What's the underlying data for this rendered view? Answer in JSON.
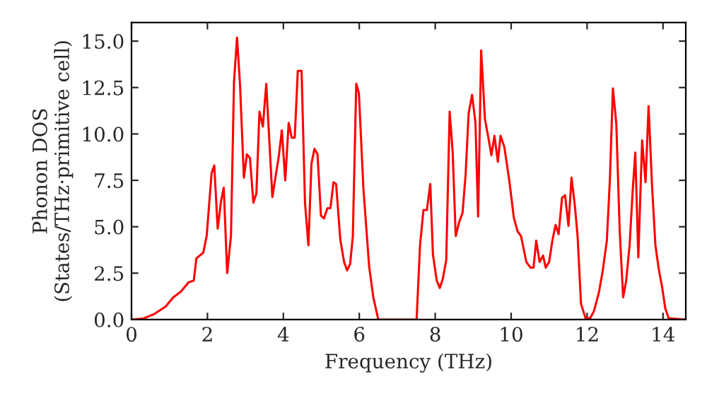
{
  "chart_data": {
    "type": "line",
    "xlabel": "Frequency (THz)",
    "ylabel": "Phonon DOS\n(States/THz·primitive cell)",
    "series": [
      {
        "color": "#ff0000",
        "x": [
          0,
          0.3,
          0.6,
          0.9,
          1.1,
          1.3,
          1.5,
          1.64,
          1.71,
          1.89,
          1.98,
          2.11,
          2.18,
          2.27,
          2.36,
          2.43,
          2.52,
          2.62,
          2.7,
          2.78,
          2.86,
          2.96,
          3.04,
          3.12,
          3.21,
          3.29,
          3.37,
          3.46,
          3.55,
          3.71,
          3.88,
          3.96,
          4.05,
          4.14,
          4.22,
          4.3,
          4.38,
          4.48,
          4.57,
          4.66,
          4.74,
          4.82,
          4.9,
          4.99,
          5.07,
          5.16,
          5.24,
          5.32,
          5.39,
          5.5,
          5.6,
          5.68,
          5.76,
          5.83,
          5.92,
          5.99,
          6.11,
          6.26,
          6.37,
          6.5,
          7.51,
          7.6,
          7.69,
          7.78,
          7.87,
          7.94,
          8.04,
          8.12,
          8.2,
          8.29,
          8.38,
          8.46,
          8.54,
          8.63,
          8.72,
          8.8,
          8.88,
          8.97,
          9.06,
          9.13,
          9.21,
          9.31,
          9.4,
          9.48,
          9.56,
          9.65,
          9.72,
          9.82,
          9.95,
          10.07,
          10.17,
          10.26,
          10.4,
          10.51,
          10.59,
          10.66,
          10.75,
          10.84,
          10.91,
          11.0,
          11.09,
          11.17,
          11.25,
          11.34,
          11.42,
          11.51,
          11.59,
          11.68,
          11.75,
          11.84,
          11.96,
          12.08,
          12.18,
          12.31,
          12.41,
          12.52,
          12.6,
          12.68,
          12.77,
          12.86,
          12.95,
          13.03,
          13.12,
          13.2,
          13.27,
          13.35,
          13.45,
          13.54,
          13.62,
          13.71,
          13.8,
          13.89,
          13.98,
          14.06,
          14.15,
          14.6
        ],
        "values": [
          0,
          0.05,
          0.3,
          0.7,
          1.2,
          1.5,
          2.0,
          2.1,
          3.3,
          3.6,
          4.5,
          7.9,
          8.3,
          4.9,
          6.4,
          7.1,
          2.5,
          4.5,
          12.8,
          15.2,
          12.6,
          7.65,
          8.9,
          8.7,
          6.3,
          6.8,
          11.2,
          10.4,
          12.7,
          6.6,
          8.8,
          10.2,
          7.5,
          10.6,
          9.8,
          9.8,
          13.4,
          13.4,
          6.3,
          4.0,
          8.4,
          9.2,
          8.9,
          5.6,
          5.45,
          6.0,
          6.0,
          7.4,
          7.3,
          4.3,
          3.1,
          2.65,
          3.0,
          4.5,
          12.7,
          12.2,
          7.0,
          2.85,
          1.2,
          0,
          0,
          4.0,
          5.9,
          5.9,
          7.3,
          3.5,
          2.1,
          1.7,
          2.2,
          3.2,
          11.2,
          9.0,
          4.5,
          5.25,
          5.75,
          7.8,
          11.1,
          12.1,
          10.6,
          5.55,
          14.5,
          10.8,
          9.8,
          8.85,
          9.9,
          8.5,
          9.9,
          9.3,
          7.5,
          5.5,
          4.75,
          4.5,
          3.1,
          2.8,
          2.8,
          4.25,
          3.1,
          3.45,
          2.8,
          3.1,
          4.3,
          5.1,
          4.6,
          6.55,
          6.7,
          5.05,
          7.65,
          6.1,
          4.5,
          0.85,
          0.07,
          0.07,
          0.45,
          1.45,
          2.6,
          4.25,
          7.5,
          12.45,
          10.55,
          4.75,
          1.2,
          2.1,
          4.0,
          6.9,
          9.0,
          3.35,
          9.65,
          7.4,
          11.5,
          7.25,
          4.0,
          2.7,
          1.7,
          0.6,
          0.07,
          0
        ]
      }
    ],
    "xlim": [
      0,
      14.6
    ],
    "xticks": [
      0,
      2,
      4,
      6,
      8,
      10,
      12,
      14
    ],
    "ylim": [
      0,
      16
    ],
    "yticks": [
      {
        "value": 0,
        "label": "0.0"
      },
      {
        "value": 2.5,
        "label": "2.5"
      },
      {
        "value": 5,
        "label": "5.0"
      },
      {
        "value": 7.5,
        "label": "7.5"
      },
      {
        "value": 10,
        "label": "10.0"
      },
      {
        "value": 12.5,
        "label": "12.5"
      },
      {
        "value": 15,
        "label": "15.0"
      }
    ],
    "grid": false,
    "line_style": "solid",
    "marker": "none"
  }
}
